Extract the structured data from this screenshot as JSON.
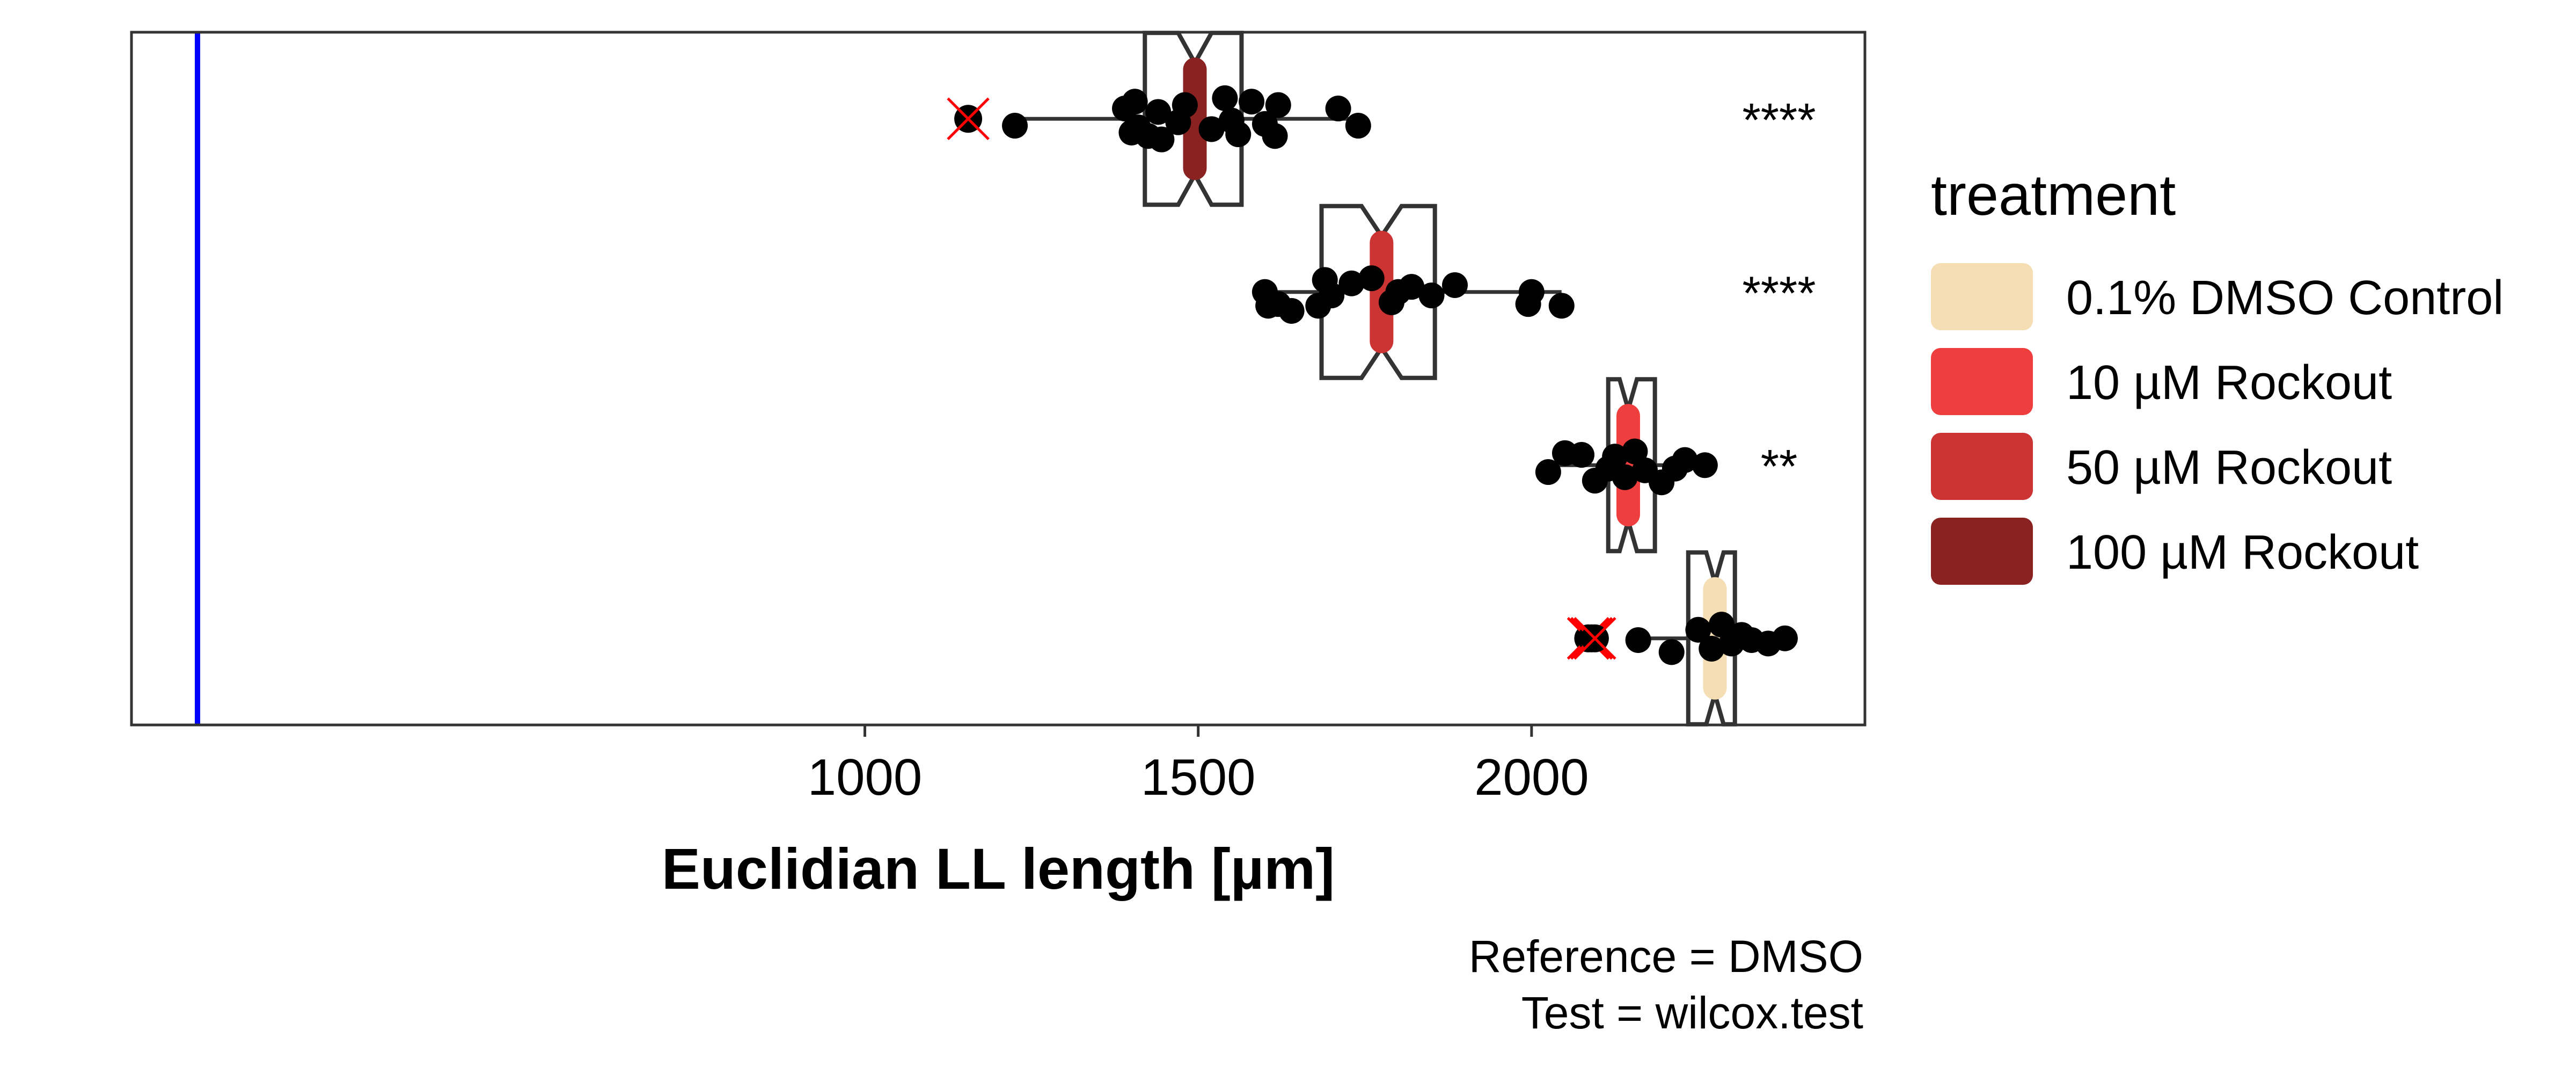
{
  "chart_data": {
    "type": "boxplot",
    "orientation": "horizontal",
    "xlabel": "Euclidian LL length [µm]",
    "ylabel": "",
    "xlim": [
      -100,
      2500
    ],
    "xticks": [
      1000,
      1500,
      2000
    ],
    "xtick_labels": [
      "1000",
      "1500",
      "2000"
    ],
    "reference_line": {
      "x": -1,
      "color": "#0000ff"
    },
    "grid": false,
    "legend": {
      "title": "treatment",
      "position": "right",
      "entries": [
        {
          "label": "0.1% DMSO Control",
          "color": "#f5deb3"
        },
        {
          "label": "10 µM Rockout",
          "color": "#ef3e3e"
        },
        {
          "label": "50 µM Rockout",
          "color": "#cc3333"
        },
        {
          "label": "100 µM Rockout",
          "color": "#8b2222"
        }
      ]
    },
    "series": [
      {
        "name": "100 µM Rockout",
        "color": "#8b2222",
        "q1": 1420,
        "median": 1495,
        "q3": 1565,
        "notch_low": 1470,
        "notch_high": 1520,
        "whisker_low": 1225,
        "whisker_high": 1740,
        "outliers": [
          1155
        ],
        "points": [
          [
            1225,
            0.04
          ],
          [
            1390,
            -0.06
          ],
          [
            1400,
            0.08
          ],
          [
            1405,
            -0.1
          ],
          [
            1410,
            0.05
          ],
          [
            1425,
            0.1
          ],
          [
            1440,
            -0.04
          ],
          [
            1445,
            0.12
          ],
          [
            1470,
            0.02
          ],
          [
            1480,
            -0.08
          ],
          [
            1520,
            0.06
          ],
          [
            1540,
            -0.12
          ],
          [
            1550,
            0.01
          ],
          [
            1560,
            0.09
          ],
          [
            1580,
            -0.1
          ],
          [
            1600,
            0.03
          ],
          [
            1615,
            0.1
          ],
          [
            1620,
            -0.08
          ],
          [
            1710,
            -0.06
          ],
          [
            1740,
            0.04
          ]
        ],
        "significance": "****"
      },
      {
        "name": "50 µM Rockout",
        "color": "#cc3333",
        "q1": 1685,
        "median": 1775,
        "q3": 1855,
        "notch_low": 1745,
        "notch_high": 1805,
        "whisker_low": 1600,
        "whisker_high": 2045,
        "outliers": [],
        "points": [
          [
            1600,
            0.0
          ],
          [
            1605,
            0.08
          ],
          [
            1620,
            0.07
          ],
          [
            1640,
            0.11
          ],
          [
            1680,
            0.08
          ],
          [
            1690,
            -0.07
          ],
          [
            1700,
            0.02
          ],
          [
            1730,
            -0.05
          ],
          [
            1760,
            -0.08
          ],
          [
            1790,
            0.06
          ],
          [
            1800,
            0.0
          ],
          [
            1820,
            -0.03
          ],
          [
            1850,
            0.02
          ],
          [
            1885,
            -0.04
          ],
          [
            1995,
            0.07
          ],
          [
            2000,
            0.0
          ],
          [
            2045,
            0.08
          ]
        ],
        "significance": "****"
      },
      {
        "name": "10 µM Rockout",
        "color": "#ef3e3e",
        "q1": 2115,
        "median": 2145,
        "q3": 2185,
        "notch_low": 2132,
        "notch_high": 2158,
        "whisker_low": 2025,
        "whisker_high": 2260,
        "outliers": [],
        "points": [
          [
            2025,
            0.04
          ],
          [
            2050,
            -0.07
          ],
          [
            2075,
            -0.06
          ],
          [
            2095,
            0.09
          ],
          [
            2115,
            0.02
          ],
          [
            2125,
            -0.05
          ],
          [
            2140,
            0.07
          ],
          [
            2155,
            -0.08
          ],
          [
            2170,
            0.03
          ],
          [
            2195,
            0.1
          ],
          [
            2215,
            0.02
          ],
          [
            2230,
            -0.03
          ],
          [
            2260,
            0.0
          ]
        ],
        "significance": "**"
      },
      {
        "name": "0.1% DMSO Control",
        "color": "#f5deb3",
        "q1": 2235,
        "median": 2275,
        "q3": 2305,
        "notch_low": 2262,
        "notch_high": 2288,
        "whisker_low": 2160,
        "whisker_high": 2380,
        "outliers": [
          2085,
          2090,
          2095
        ],
        "points": [
          [
            2160,
            0.01
          ],
          [
            2210,
            0.08
          ],
          [
            2250,
            -0.05
          ],
          [
            2270,
            0.06
          ],
          [
            2285,
            -0.08
          ],
          [
            2300,
            0.03
          ],
          [
            2315,
            -0.02
          ],
          [
            2330,
            0.01
          ],
          [
            2355,
            0.03
          ],
          [
            2380,
            0.0
          ]
        ],
        "significance": ""
      }
    ],
    "caption": [
      "Reference = DMSO",
      "Test = wilcox.test"
    ]
  }
}
